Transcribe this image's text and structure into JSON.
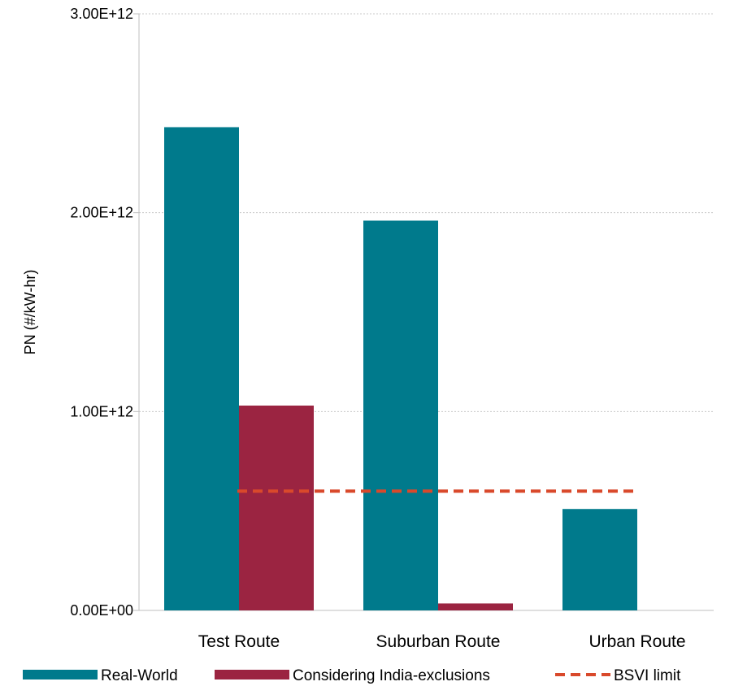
{
  "chart_data": {
    "type": "bar",
    "categories": [
      "Test Route",
      "Suburban Route",
      "Urban Route"
    ],
    "series": [
      {
        "name": "Real-World",
        "values": [
          2430000000000.0,
          1960000000000.0,
          510000000000.0
        ],
        "color": "#007A8C"
      },
      {
        "name": "Considering India-exclusions",
        "values": [
          1030000000000.0,
          35000000000.0,
          0
        ],
        "color": "#9B2441"
      }
    ],
    "reference_line": {
      "name": "BSVI limit",
      "value": 600000000000.0,
      "color": "#D9492B",
      "style": "dashed"
    },
    "title": "",
    "xlabel": "",
    "ylabel": "PN (#/kW-hr)",
    "ylim": [
      0,
      3000000000000.0
    ],
    "yticks": [
      0,
      1000000000000.0,
      2000000000000.0,
      3000000000000.0
    ],
    "ytick_labels": [
      "0.00E+00",
      "1.00E+12",
      "2.00E+12",
      "3.00E+12"
    ],
    "grid": true,
    "legend_position": "bottom"
  }
}
